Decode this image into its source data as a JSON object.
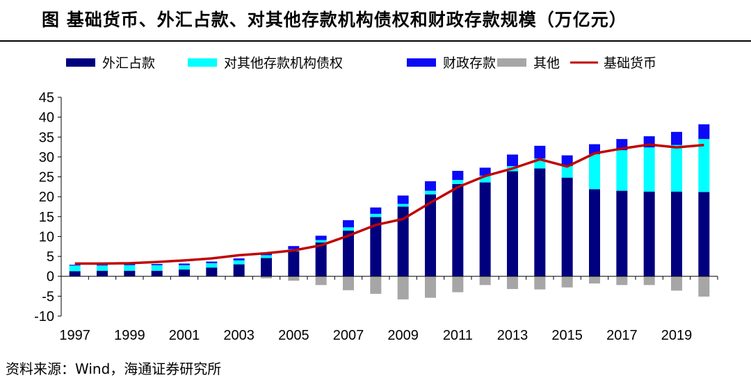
{
  "title": "图  基础货币、外汇占款、对其他存款机构债权和财政存款规模（万亿元）",
  "source": "资料来源：Wind，海通证券研究所",
  "chart_data": {
    "type": "bar",
    "stacked": true,
    "years": [
      1997,
      1998,
      1999,
      2000,
      2001,
      2002,
      2003,
      2004,
      2005,
      2006,
      2007,
      2008,
      2009,
      2010,
      2011,
      2012,
      2013,
      2014,
      2015,
      2016,
      2017,
      2018,
      2019,
      2020
    ],
    "x_tick_labels": [
      "1997",
      "1999",
      "2001",
      "2003",
      "2005",
      "2007",
      "2009",
      "2011",
      "2013",
      "2015",
      "2017",
      "2019"
    ],
    "ylim": [
      -10,
      45
    ],
    "y_ticks": [
      -10,
      -5,
      0,
      5,
      10,
      15,
      20,
      25,
      30,
      35,
      40,
      45
    ],
    "legend_position": "top",
    "grid": false,
    "series": [
      {
        "name": "外汇占款",
        "type": "bar",
        "color": "#00007F",
        "values": [
          1.3,
          1.4,
          1.4,
          1.4,
          1.7,
          2.2,
          3.0,
          4.6,
          6.3,
          8.5,
          11.5,
          14.9,
          17.5,
          20.6,
          23.2,
          23.6,
          26.4,
          27.1,
          24.8,
          21.9,
          21.5,
          21.3,
          21.3,
          21.2
        ]
      },
      {
        "name": "对其他存款机构债权",
        "type": "bar",
        "color": "#00FFFF",
        "values": [
          1.4,
          1.3,
          1.4,
          1.4,
          1.1,
          1.1,
          1.0,
          0.7,
          0.5,
          0.6,
          0.8,
          0.8,
          0.7,
          0.9,
          1.0,
          1.7,
          1.3,
          2.5,
          2.9,
          8.8,
          10.2,
          11.1,
          11.7,
          13.3
        ]
      },
      {
        "name": "财政存款",
        "type": "bar",
        "color": "#0A0AF5",
        "values": [
          0.2,
          0.2,
          0.3,
          0.3,
          0.4,
          0.4,
          0.5,
          0.7,
          0.8,
          1.1,
          1.8,
          1.6,
          2.1,
          2.4,
          2.3,
          2.0,
          2.9,
          3.2,
          2.7,
          2.5,
          2.8,
          2.8,
          3.3,
          3.7
        ]
      },
      {
        "name": "其他",
        "type": "bar",
        "color": "#A6A6A6",
        "values": [
          0,
          0,
          0,
          0,
          0,
          0,
          -0.2,
          -0.5,
          -1.1,
          -2.2,
          -3.5,
          -4.4,
          -5.8,
          -5.4,
          -4.0,
          -2.2,
          -3.2,
          -3.3,
          -2.8,
          -1.8,
          -2.2,
          -2.2,
          -3.6,
          -5.1
        ]
      },
      {
        "name": "基础货币",
        "type": "line",
        "color": "#C00000",
        "values": [
          3.2,
          3.2,
          3.3,
          3.6,
          4.0,
          4.5,
          5.3,
          5.8,
          6.5,
          7.8,
          10.2,
          12.9,
          14.4,
          18.5,
          22.4,
          25.2,
          27.1,
          29.4,
          27.6,
          30.9,
          32.1,
          33.1,
          32.4,
          33.0
        ]
      }
    ]
  }
}
